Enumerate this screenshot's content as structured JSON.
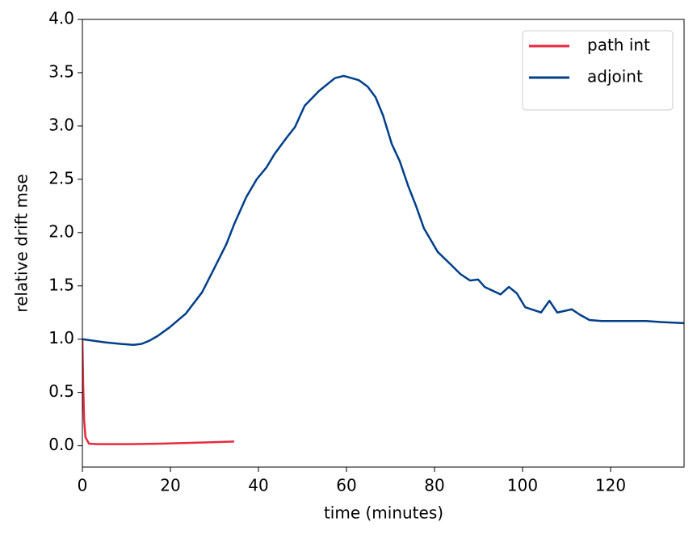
{
  "chart_data": {
    "type": "line",
    "xlabel": "time (minutes)",
    "ylabel": "relative drift mse",
    "xlim": [
      0,
      136.7
    ],
    "ylim": [
      -0.2,
      4.0
    ],
    "xticks": [
      0,
      20,
      40,
      60,
      80,
      100,
      120
    ],
    "yticks": [
      {
        "value": 0,
        "label": "0.0"
      },
      0.5,
      {
        "value": 1,
        "label": "1.0"
      },
      1.5,
      {
        "value": 2,
        "label": "2.0"
      },
      2.5,
      {
        "value": 3,
        "label": "3.0"
      },
      3.5,
      {
        "value": 4,
        "label": "4.0"
      }
    ],
    "legend": "upper right",
    "series": [
      {
        "name": "path int",
        "color": "#e8293e",
        "x": [
          0,
          0.2,
          0.4,
          0.7,
          1.5,
          3.3,
          10.6,
          18,
          27,
          34.5
        ],
        "values": [
          1.0,
          0.55,
          0.24,
          0.08,
          0.02,
          0.015,
          0.015,
          0.02,
          0.03,
          0.04
        ]
      },
      {
        "name": "adjoint",
        "color": "#003f8a",
        "x": [
          0,
          5.1,
          8.8,
          11.6,
          13.4,
          15.2,
          17.1,
          19.8,
          23.5,
          27.2,
          29.9,
          32.7,
          34.5,
          37.2,
          39.6,
          41.8,
          43.7,
          46.4,
          48.3,
          50.5,
          53.8,
          57.4,
          59.4,
          62.8,
          64.8,
          66.6,
          68.3,
          70.3,
          72.1,
          74,
          75.8,
          77.6,
          80.7,
          83.7,
          85.9,
          88.1,
          89.9,
          91.4,
          95,
          96.9,
          98.7,
          100.6,
          104.2,
          106.1,
          107.9,
          111.2,
          113,
          115.2,
          118,
          120.7,
          124.4,
          128.1,
          131.7,
          136.7
        ],
        "values": [
          1.0,
          0.97,
          0.955,
          0.947,
          0.955,
          0.985,
          1.03,
          1.11,
          1.24,
          1.44,
          1.66,
          1.89,
          2.08,
          2.33,
          2.5,
          2.61,
          2.74,
          2.89,
          2.99,
          3.19,
          3.33,
          3.45,
          3.47,
          3.43,
          3.37,
          3.27,
          3.1,
          2.83,
          2.67,
          2.44,
          2.25,
          2.04,
          1.82,
          1.7,
          1.61,
          1.55,
          1.56,
          1.49,
          1.42,
          1.49,
          1.43,
          1.3,
          1.25,
          1.36,
          1.25,
          1.28,
          1.23,
          1.18,
          1.17,
          1.17,
          1.17,
          1.17,
          1.16,
          1.15
        ]
      }
    ]
  }
}
